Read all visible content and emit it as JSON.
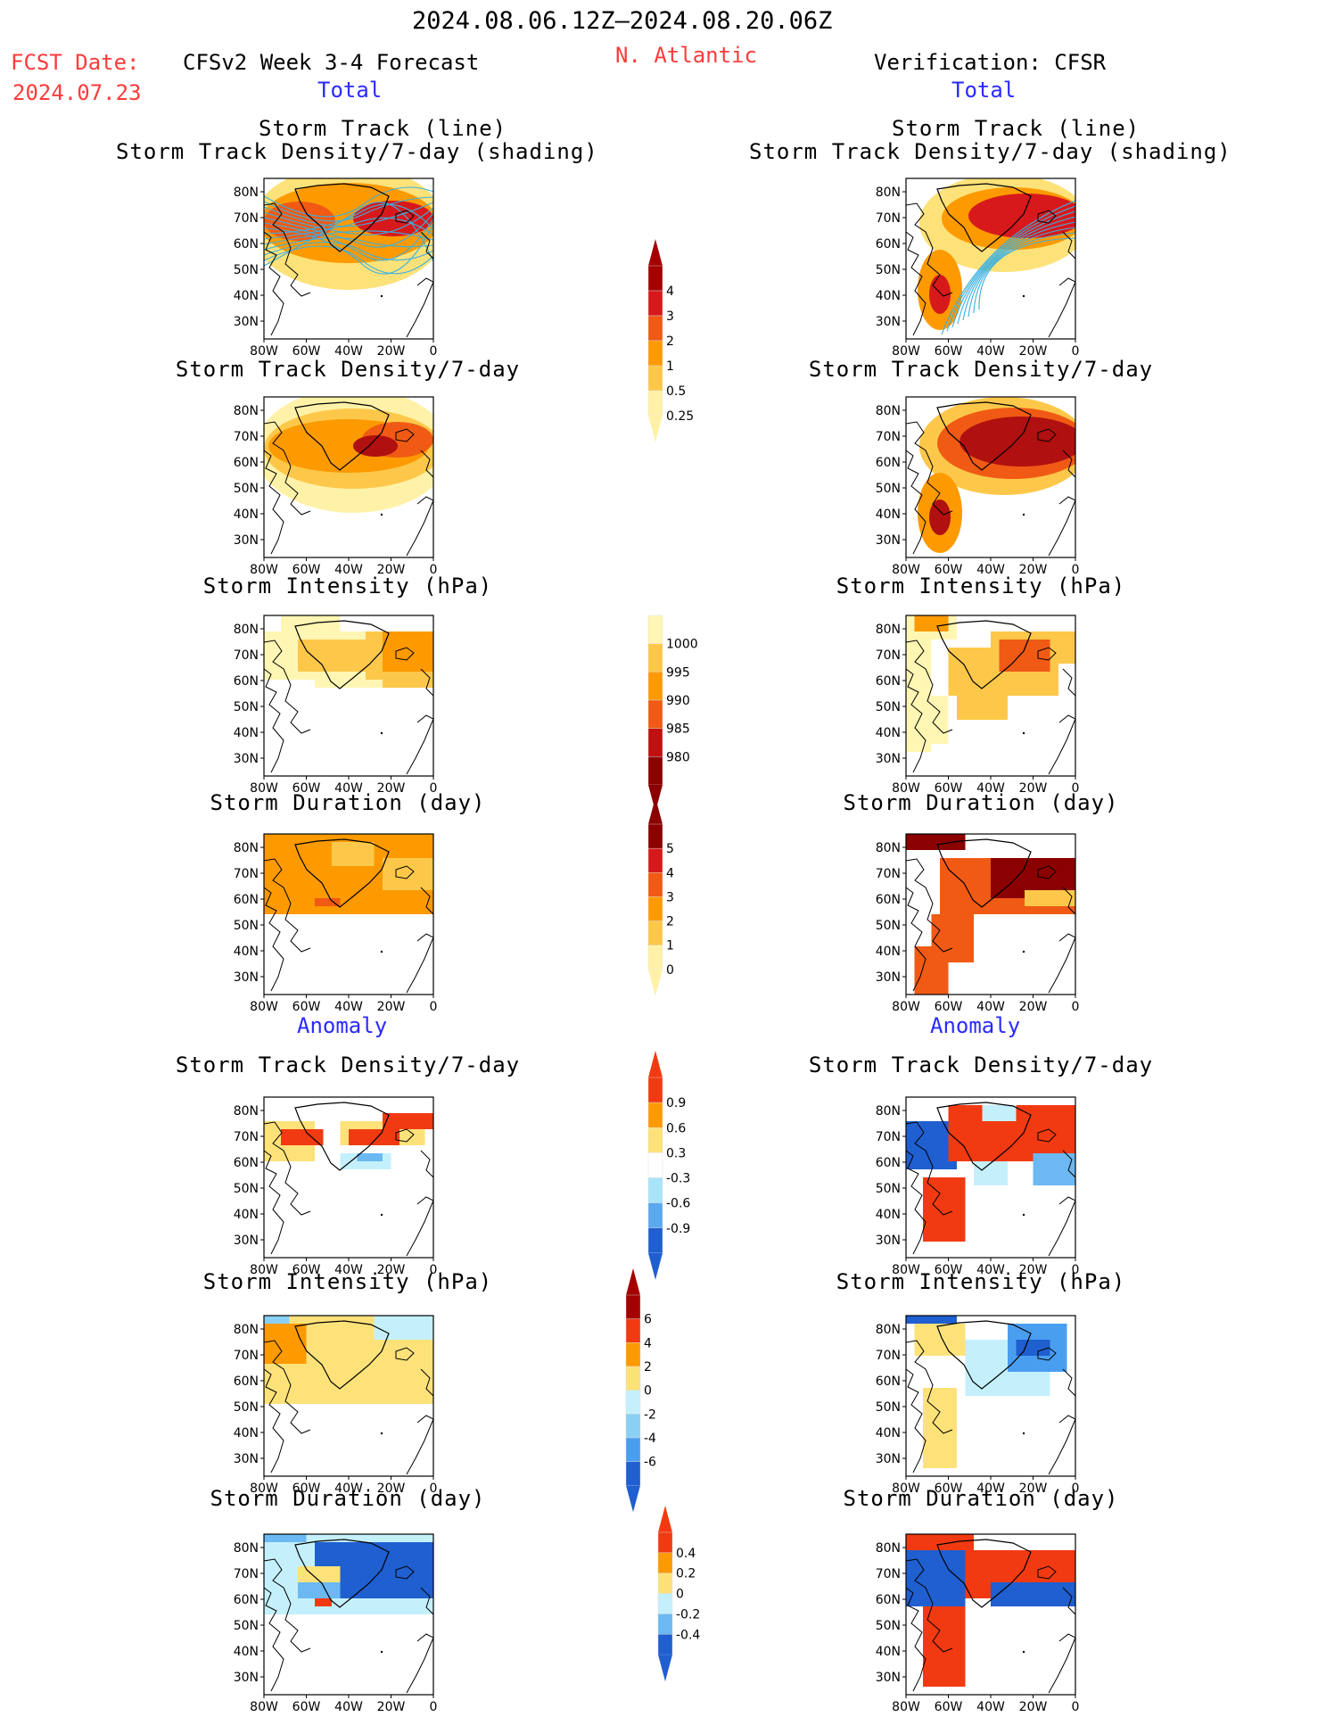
{
  "header": {
    "date_range": "2024.08.06.12Z–2024.08.20.06Z",
    "fcst_label": "FCST Date:",
    "fcst_date": "2024.07.23",
    "model": "CFSv2 Week 3-4 Forecast",
    "region": "N. Atlantic",
    "verification": "Verification: CFSR"
  },
  "sections": {
    "total": "Total",
    "anomaly": "Anomaly"
  },
  "panel_titles": {
    "track_line": "Storm Track (line)",
    "track_shading": "Storm Track Density/7-day (shading)",
    "density": "Storm Track Density/7-day",
    "intensity": "Storm Intensity (hPa)",
    "duration": "Storm Duration (day)"
  },
  "axes": {
    "lat_ticks": [
      "80N",
      "70N",
      "60N",
      "50N",
      "40N",
      "30N"
    ],
    "lon_ticks": [
      "80W",
      "60W",
      "40W",
      "20W",
      "0"
    ]
  },
  "colorbars": {
    "density_total": {
      "levels": [
        "4",
        "3",
        "2",
        "1",
        "0.5",
        "0.25"
      ],
      "colors": [
        "#a50000",
        "#d7191c",
        "#f05a14",
        "#fd9a00",
        "#fdc84a",
        "#fff2a8"
      ]
    },
    "intensity_total": {
      "levels": [
        "1000",
        "995",
        "990",
        "985",
        "980"
      ],
      "colors": [
        "#fff6b4",
        "#fdc84a",
        "#fd9a00",
        "#f05a14",
        "#c01010",
        "#8b0000"
      ]
    },
    "duration_total": {
      "levels": [
        "5",
        "4",
        "3",
        "2",
        "1",
        "0"
      ],
      "colors": [
        "#8b0000",
        "#d7191c",
        "#f05a14",
        "#fd9a00",
        "#fdc84a",
        "#fff2a8"
      ]
    },
    "density_anom": {
      "levels": [
        "0.9",
        "0.6",
        "0.3",
        "-0.3",
        "-0.6",
        "-0.9"
      ],
      "colors": [
        "#f23a12",
        "#fd9a00",
        "#fde27a",
        "#ffffff",
        "#a8e4f8",
        "#5aa8ee",
        "#1f5fd0"
      ]
    },
    "intensity_anom": {
      "levels": [
        "6",
        "4",
        "2",
        "0",
        "-2",
        "-4",
        "-6"
      ],
      "colors": [
        "#a50000",
        "#f23a12",
        "#fd9a00",
        "#fde27a",
        "#c4f0fc",
        "#8ad0f4",
        "#4a9ef0",
        "#1f5fd0"
      ]
    },
    "duration_anom": {
      "levels": [
        "0.4",
        "0.2",
        "0",
        "-0.2",
        "-0.4"
      ],
      "colors": [
        "#f23a12",
        "#fd9a00",
        "#fde27a",
        "#c4f0fc",
        "#6cb8f2",
        "#1f5fd0"
      ]
    }
  },
  "colors": {
    "track_line": "#3ab0e0",
    "title_red": "#ff3b3b",
    "section_blue": "#2a2aff"
  }
}
